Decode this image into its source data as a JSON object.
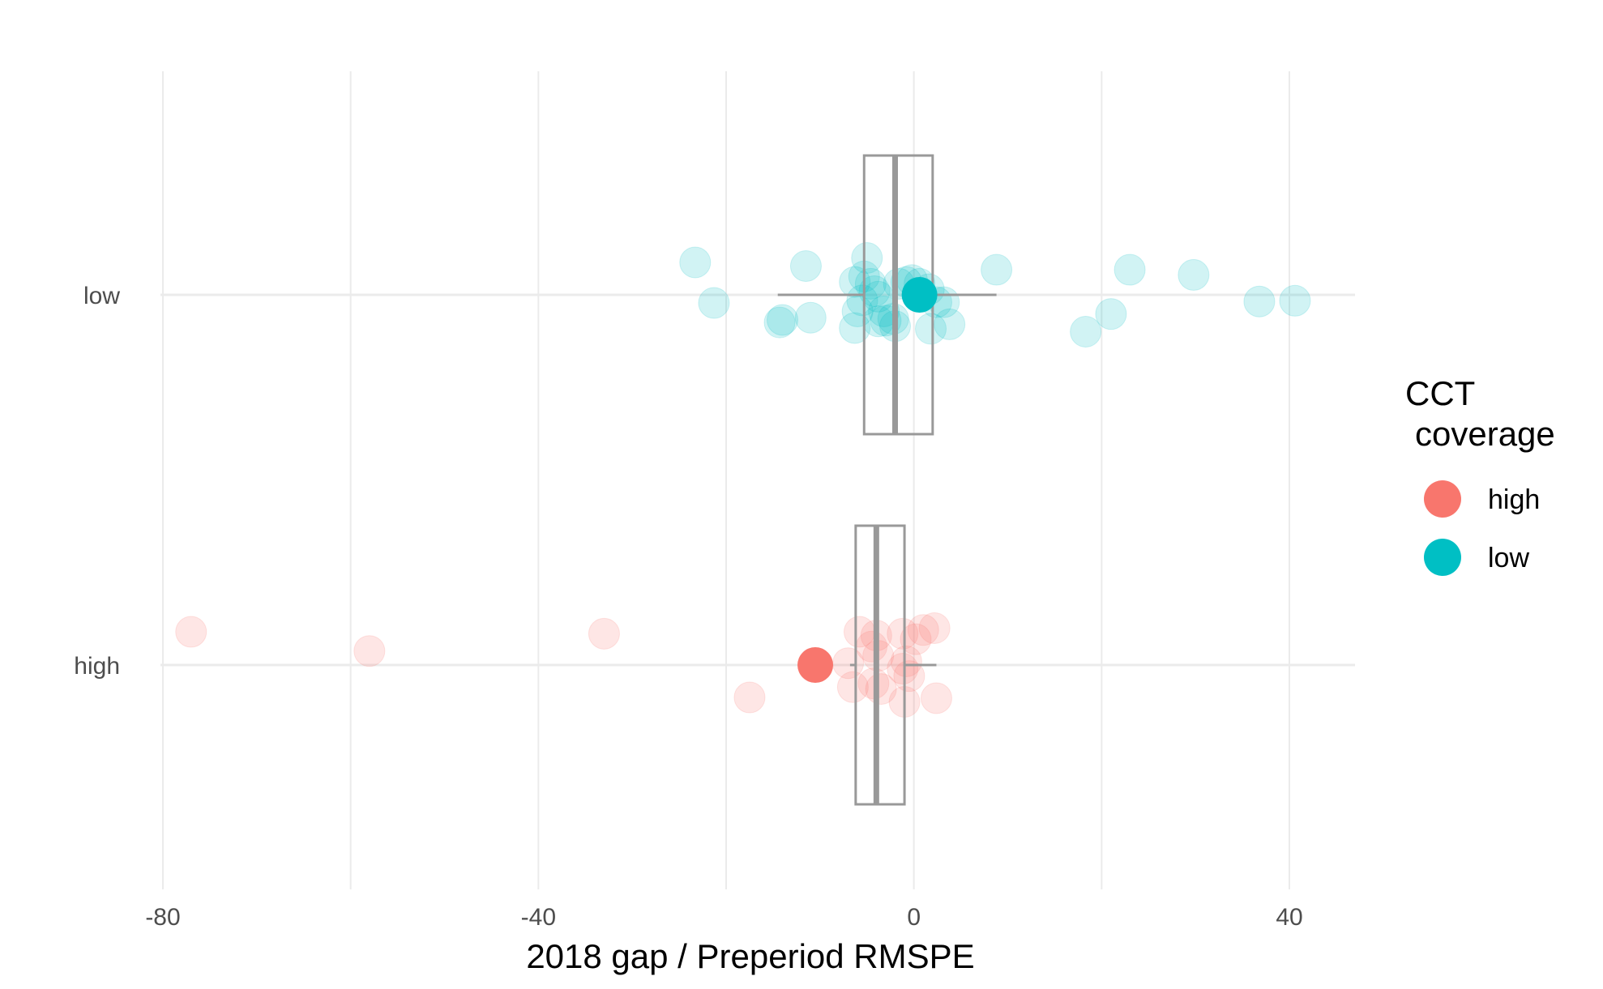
{
  "chart_data": {
    "type": "scatter",
    "title": "",
    "xlabel": "2018 gap / Preperiod RMSPE",
    "ylabel": "",
    "xlim": [
      -82,
      46
    ],
    "x_ticks": [
      -80,
      -40,
      0,
      40
    ],
    "x_tick_labels": [
      "-80",
      "-40",
      "0",
      "40"
    ],
    "categories": [
      "low",
      "high"
    ],
    "grid": true,
    "legend": {
      "title_line1": "CCT",
      "title_line2": "coverage",
      "placement": "right",
      "entries": [
        {
          "label": "high",
          "color": "#F8766D"
        },
        {
          "label": "low",
          "color": "#00BFC4"
        }
      ]
    },
    "series": [
      {
        "name": "low",
        "category": "low",
        "color": "#00BFC4",
        "points": [
          {
            "x": -23.3,
            "j": 0.088
          },
          {
            "x": -21.3,
            "j": -0.022
          },
          {
            "x": -11.5,
            "j": 0.078
          },
          {
            "x": -14.3,
            "j": -0.075
          },
          {
            "x": -14.0,
            "j": -0.068
          },
          {
            "x": -11.0,
            "j": -0.062
          },
          {
            "x": -5.0,
            "j": 0.1
          },
          {
            "x": -5.3,
            "j": 0.05
          },
          {
            "x": -6.3,
            "j": 0.035
          },
          {
            "x": -4.6,
            "j": 0.03
          },
          {
            "x": -6.0,
            "j": -0.045
          },
          {
            "x": -4.2,
            "j": 0.01
          },
          {
            "x": -5.5,
            "j": -0.015
          },
          {
            "x": -3.8,
            "j": -0.005
          },
          {
            "x": -3.2,
            "j": -0.045
          },
          {
            "x": -3.0,
            "j": -0.07
          },
          {
            "x": -2.2,
            "j": -0.065
          },
          {
            "x": -6.3,
            "j": -0.09
          },
          {
            "x": -3.8,
            "j": -0.072
          },
          {
            "x": -2.0,
            "j": -0.085
          },
          {
            "x": -1.6,
            "j": 0.03
          },
          {
            "x": -0.8,
            "j": 0.035
          },
          {
            "x": -0.2,
            "j": 0.04
          },
          {
            "x": 0.6,
            "j": 0.03
          },
          {
            "x": 1.6,
            "j": 0.015
          },
          {
            "x": 2.4,
            "j": -0.02
          },
          {
            "x": 3.2,
            "j": -0.02
          },
          {
            "x": 1.8,
            "j": -0.092
          },
          {
            "x": 3.8,
            "j": -0.08
          },
          {
            "x": 8.8,
            "j": 0.068
          },
          {
            "x": 18.3,
            "j": -0.1
          },
          {
            "x": 21.0,
            "j": -0.052
          },
          {
            "x": 23.0,
            "j": 0.068
          },
          {
            "x": 29.8,
            "j": 0.054
          },
          {
            "x": 36.8,
            "j": -0.018
          },
          {
            "x": 40.6,
            "j": -0.016
          }
        ],
        "mean": 0.6,
        "box": {
          "q1": -5.3,
          "median": -2.0,
          "q3": 2.0,
          "whisker_low": -14.5,
          "whisker_high": 8.8
        }
      },
      {
        "name": "high",
        "category": "high",
        "color": "#F8766D",
        "points": [
          {
            "x": -77.0,
            "j": 0.09
          },
          {
            "x": -58.0,
            "j": 0.038
          },
          {
            "x": -33.0,
            "j": 0.085
          },
          {
            "x": -17.5,
            "j": -0.088
          },
          {
            "x": -7.0,
            "j": 0.005
          },
          {
            "x": -6.5,
            "j": -0.06
          },
          {
            "x": -5.8,
            "j": 0.09
          },
          {
            "x": -4.5,
            "j": 0.05
          },
          {
            "x": -4.0,
            "j": 0.08
          },
          {
            "x": -3.8,
            "j": 0.025
          },
          {
            "x": -4.3,
            "j": -0.05
          },
          {
            "x": -3.5,
            "j": -0.065
          },
          {
            "x": -1.2,
            "j": 0.085
          },
          {
            "x": -1.2,
            "j": -0.01
          },
          {
            "x": -1.0,
            "j": -0.1
          },
          {
            "x": -0.8,
            "j": 0.01
          },
          {
            "x": -0.5,
            "j": -0.03
          },
          {
            "x": 0.2,
            "j": 0.07
          },
          {
            "x": 1.0,
            "j": 0.095
          },
          {
            "x": 2.2,
            "j": 0.1
          },
          {
            "x": 2.4,
            "j": -0.09
          }
        ],
        "mean": -10.5,
        "box": {
          "q1": -6.2,
          "median": -4.0,
          "q3": -1.0,
          "whisker_low": -6.8,
          "whisker_high": 2.4
        }
      }
    ]
  }
}
